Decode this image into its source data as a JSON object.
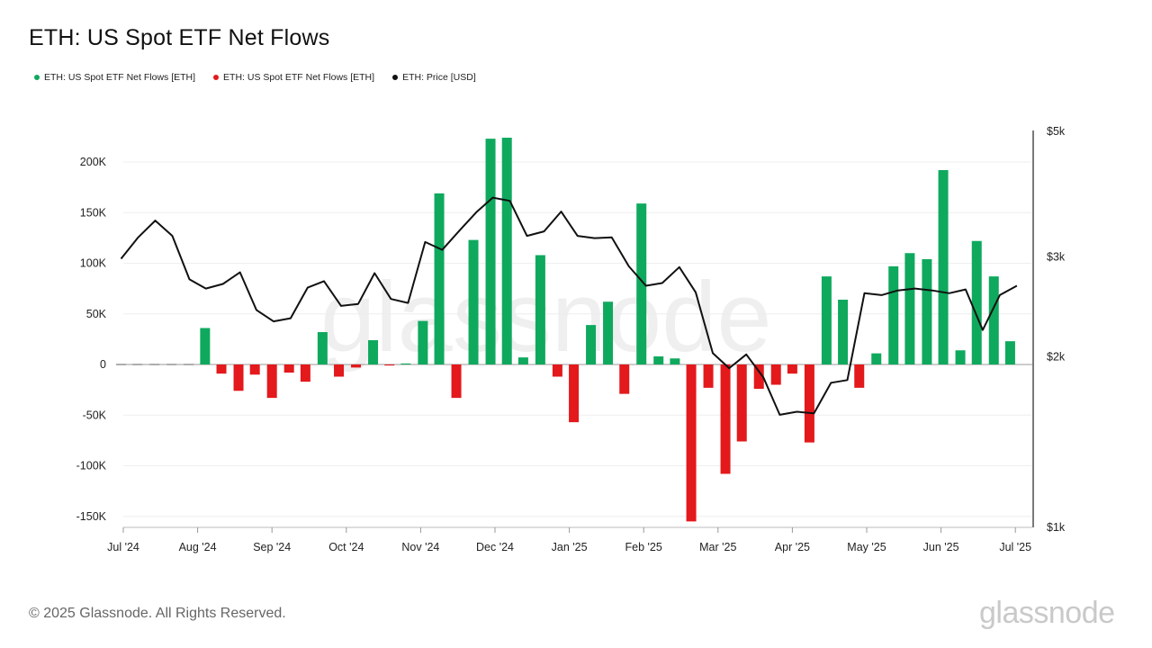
{
  "title": "ETH: US Spot ETF Net Flows",
  "legend": [
    {
      "label": "ETH: US Spot ETF Net Flows [ETH]",
      "color": "#0fa95e"
    },
    {
      "label": "ETH: US Spot ETF Net Flows [ETH]",
      "color": "#e3191c"
    },
    {
      "label": "ETH: Price [USD]",
      "color": "#111111"
    }
  ],
  "footer": "© 2025 Glassnode. All Rights Reserved.",
  "brand": "glassnode",
  "watermark": "glassnode",
  "chart_data": {
    "type": "bar",
    "title": "ETH: US Spot ETF Net Flows",
    "positive_color": "#0fa95e",
    "negative_color": "#e3191c",
    "price_color": "#111111",
    "x_ticks": [
      "Jul '24",
      "Aug '24",
      "Sep '24",
      "Oct '24",
      "Nov '24",
      "Dec '24",
      "Jan '25",
      "Feb '25",
      "Mar '25",
      "Apr '25",
      "May '25",
      "Jun '25",
      "Jul '25"
    ],
    "y_left": {
      "ticks": [
        200000,
        150000,
        100000,
        50000,
        0,
        -50000,
        -100000,
        -150000
      ],
      "labels": [
        "200K",
        "150K",
        "100K",
        "50K",
        "0",
        "-50K",
        "-100K",
        "-150K"
      ],
      "range": [
        -160000,
        230000
      ]
    },
    "y_right": {
      "scale": "log",
      "ticks": [
        5000,
        3000,
        2000,
        1000
      ],
      "labels": [
        "$5k",
        "$3k",
        "$2k",
        "$1k"
      ],
      "range": [
        1000,
        5000
      ]
    },
    "bars": [
      {
        "x": 0.97,
        "value": 0
      },
      {
        "x": 1.19,
        "value": 0
      },
      {
        "x": 1.42,
        "value": 0
      },
      {
        "x": 1.65,
        "value": 0
      },
      {
        "x": 1.88,
        "value": 0
      },
      {
        "x": 2.1,
        "value": 36000
      },
      {
        "x": 2.32,
        "value": -9000
      },
      {
        "x": 2.55,
        "value": -26000
      },
      {
        "x": 2.77,
        "value": -10000
      },
      {
        "x": 3.0,
        "value": -33000
      },
      {
        "x": 3.23,
        "value": -8000
      },
      {
        "x": 3.45,
        "value": -17000
      },
      {
        "x": 3.68,
        "value": 32000
      },
      {
        "x": 3.9,
        "value": -12000
      },
      {
        "x": 4.13,
        "value": -3000
      },
      {
        "x": 4.36,
        "value": 24000
      },
      {
        "x": 4.58,
        "value": -1000
      },
      {
        "x": 4.8,
        "value": 1000
      },
      {
        "x": 5.03,
        "value": 43000
      },
      {
        "x": 5.25,
        "value": 169000
      },
      {
        "x": 5.48,
        "value": -33000
      },
      {
        "x": 5.71,
        "value": 123000
      },
      {
        "x": 5.94,
        "value": 223000
      },
      {
        "x": 6.16,
        "value": 224000
      },
      {
        "x": 6.38,
        "value": 7000
      },
      {
        "x": 6.61,
        "value": 108000
      },
      {
        "x": 6.84,
        "value": -12000
      },
      {
        "x": 7.06,
        "value": -57000
      },
      {
        "x": 7.29,
        "value": 39000
      },
      {
        "x": 7.52,
        "value": 62000
      },
      {
        "x": 7.74,
        "value": -29000
      },
      {
        "x": 7.97,
        "value": 159000
      },
      {
        "x": 8.2,
        "value": 8000
      },
      {
        "x": 8.42,
        "value": 6000
      },
      {
        "x": 8.64,
        "value": -155000
      },
      {
        "x": 8.87,
        "value": -23000
      },
      {
        "x": 9.1,
        "value": -108000
      },
      {
        "x": 9.32,
        "value": -76000
      },
      {
        "x": 9.55,
        "value": -24000
      },
      {
        "x": 9.78,
        "value": -20000
      },
      {
        "x": 10.0,
        "value": -9000
      },
      {
        "x": 10.23,
        "value": -77000
      },
      {
        "x": 10.46,
        "value": 87000
      },
      {
        "x": 10.68,
        "value": 64000
      },
      {
        "x": 10.9,
        "value": -23000
      },
      {
        "x": 11.13,
        "value": 11000
      },
      {
        "x": 11.36,
        "value": 97000
      },
      {
        "x": 11.58,
        "value": 110000
      },
      {
        "x": 11.81,
        "value": 104000
      },
      {
        "x": 12.03,
        "value": 192000
      },
      {
        "x": 12.26,
        "value": 14000
      },
      {
        "x": 12.48,
        "value": 122000
      },
      {
        "x": 12.71,
        "value": 87000
      },
      {
        "x": 12.93,
        "value": 23000
      }
    ],
    "price": [
      {
        "x": 0.97,
        "y": 2980
      },
      {
        "x": 1.2,
        "y": 3250
      },
      {
        "x": 1.43,
        "y": 3480
      },
      {
        "x": 1.66,
        "y": 3270
      },
      {
        "x": 1.89,
        "y": 2740
      },
      {
        "x": 2.11,
        "y": 2640
      },
      {
        "x": 2.34,
        "y": 2690
      },
      {
        "x": 2.57,
        "y": 2820
      },
      {
        "x": 2.79,
        "y": 2420
      },
      {
        "x": 3.02,
        "y": 2310
      },
      {
        "x": 3.25,
        "y": 2340
      },
      {
        "x": 3.48,
        "y": 2650
      },
      {
        "x": 3.7,
        "y": 2720
      },
      {
        "x": 3.93,
        "y": 2460
      },
      {
        "x": 4.16,
        "y": 2480
      },
      {
        "x": 4.38,
        "y": 2810
      },
      {
        "x": 4.6,
        "y": 2530
      },
      {
        "x": 4.83,
        "y": 2490
      },
      {
        "x": 5.06,
        "y": 3190
      },
      {
        "x": 5.29,
        "y": 3090
      },
      {
        "x": 5.52,
        "y": 3340
      },
      {
        "x": 5.75,
        "y": 3600
      },
      {
        "x": 5.97,
        "y": 3820
      },
      {
        "x": 6.2,
        "y": 3770
      },
      {
        "x": 6.43,
        "y": 3270
      },
      {
        "x": 6.66,
        "y": 3330
      },
      {
        "x": 6.89,
        "y": 3610
      },
      {
        "x": 7.11,
        "y": 3270
      },
      {
        "x": 7.34,
        "y": 3240
      },
      {
        "x": 7.57,
        "y": 3250
      },
      {
        "x": 7.8,
        "y": 2890
      },
      {
        "x": 8.03,
        "y": 2670
      },
      {
        "x": 8.25,
        "y": 2700
      },
      {
        "x": 8.48,
        "y": 2880
      },
      {
        "x": 8.7,
        "y": 2600
      },
      {
        "x": 8.93,
        "y": 2030
      },
      {
        "x": 9.15,
        "y": 1910
      },
      {
        "x": 9.38,
        "y": 2020
      },
      {
        "x": 9.61,
        "y": 1840
      },
      {
        "x": 9.83,
        "y": 1580
      },
      {
        "x": 10.06,
        "y": 1600
      },
      {
        "x": 10.29,
        "y": 1590
      },
      {
        "x": 10.52,
        "y": 1800
      },
      {
        "x": 10.74,
        "y": 1820
      },
      {
        "x": 10.97,
        "y": 2590
      },
      {
        "x": 11.2,
        "y": 2570
      },
      {
        "x": 11.42,
        "y": 2620
      },
      {
        "x": 11.65,
        "y": 2640
      },
      {
        "x": 11.88,
        "y": 2620
      },
      {
        "x": 12.11,
        "y": 2590
      },
      {
        "x": 12.33,
        "y": 2630
      },
      {
        "x": 12.56,
        "y": 2230
      },
      {
        "x": 12.79,
        "y": 2570
      },
      {
        "x": 13.02,
        "y": 2670
      }
    ]
  }
}
